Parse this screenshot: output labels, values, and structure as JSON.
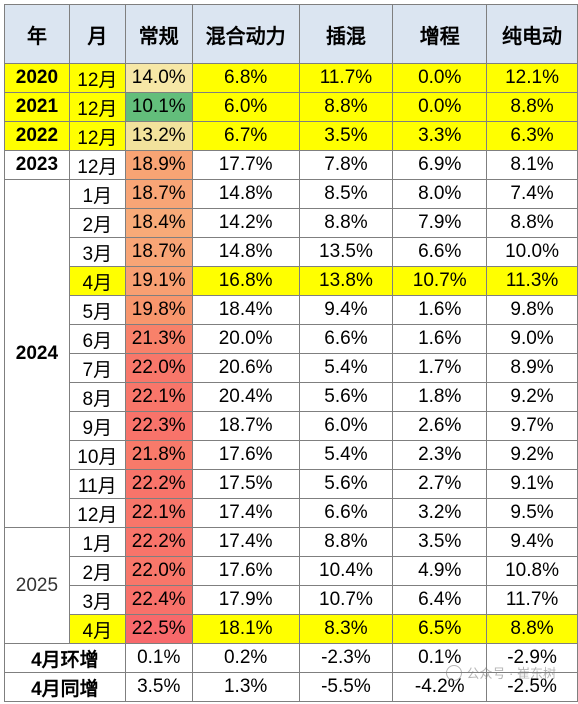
{
  "columns": [
    "年",
    "月",
    "常规",
    "混合动力",
    "插混",
    "增程",
    "纯电动"
  ],
  "rows": [
    {
      "year": "2020",
      "month": "12月",
      "values": [
        "14.0%",
        "6.8%",
        "11.7%",
        "0.0%",
        "12.1%"
      ],
      "highlight": true,
      "c": "#f6e7a6"
    },
    {
      "year": "2021",
      "month": "12月",
      "values": [
        "10.1%",
        "6.0%",
        "8.8%",
        "0.0%",
        "8.8%"
      ],
      "highlight": true,
      "c": "#63be7b"
    },
    {
      "year": "2022",
      "month": "12月",
      "values": [
        "13.2%",
        "6.7%",
        "3.5%",
        "3.3%",
        "6.3%"
      ],
      "highlight": true,
      "c": "#f2e29c"
    },
    {
      "year": "2023",
      "month": "12月",
      "values": [
        "18.9%",
        "17.7%",
        "7.8%",
        "6.9%",
        "8.1%"
      ],
      "highlight": false,
      "c": "#f8a474"
    },
    {
      "year": "",
      "month": "1月",
      "values": [
        "18.7%",
        "14.8%",
        "8.5%",
        "8.0%",
        "7.4%"
      ],
      "highlight": false,
      "c": "#f8a576"
    },
    {
      "year": "",
      "month": "2月",
      "values": [
        "18.4%",
        "14.2%",
        "8.8%",
        "7.9%",
        "8.8%"
      ],
      "highlight": false,
      "c": "#f8aa78"
    },
    {
      "year": "",
      "month": "3月",
      "values": [
        "18.7%",
        "14.8%",
        "13.5%",
        "6.6%",
        "10.0%"
      ],
      "highlight": false,
      "c": "#f8a576"
    },
    {
      "year": "",
      "month": "4月",
      "values": [
        "19.1%",
        "16.8%",
        "13.8%",
        "10.7%",
        "11.3%"
      ],
      "highlight": true,
      "c": "#f89f72"
    },
    {
      "year": "",
      "month": "5月",
      "values": [
        "19.8%",
        "18.4%",
        "9.4%",
        "1.6%",
        "9.8%"
      ],
      "highlight": false,
      "c": "#f8966d"
    },
    {
      "year": "2024",
      "month": "6月",
      "values": [
        "21.3%",
        "20.0%",
        "6.6%",
        "1.6%",
        "9.0%"
      ],
      "highlight": false,
      "c": "#f8816a"
    },
    {
      "year": "",
      "month": "7月",
      "values": [
        "22.0%",
        "20.6%",
        "5.4%",
        "1.7%",
        "8.9%"
      ],
      "highlight": false,
      "c": "#f8776a"
    },
    {
      "year": "",
      "month": "8月",
      "values": [
        "22.1%",
        "20.4%",
        "5.6%",
        "1.8%",
        "9.2%"
      ],
      "highlight": false,
      "c": "#f8766a"
    },
    {
      "year": "",
      "month": "9月",
      "values": [
        "22.3%",
        "18.7%",
        "6.0%",
        "2.6%",
        "9.7%"
      ],
      "highlight": false,
      "c": "#f8736a"
    },
    {
      "year": "",
      "month": "10月",
      "values": [
        "21.8%",
        "17.6%",
        "5.4%",
        "2.3%",
        "9.2%"
      ],
      "highlight": false,
      "c": "#f87a6a"
    },
    {
      "year": "",
      "month": "11月",
      "values": [
        "22.2%",
        "17.5%",
        "5.6%",
        "2.7%",
        "9.1%"
      ],
      "highlight": false,
      "c": "#f8746a"
    },
    {
      "year": "",
      "month": "12月",
      "values": [
        "22.1%",
        "17.4%",
        "6.6%",
        "3.2%",
        "9.5%"
      ],
      "highlight": false,
      "c": "#f8766a"
    },
    {
      "year": "",
      "month": "1月",
      "values": [
        "22.2%",
        "17.4%",
        "8.8%",
        "3.5%",
        "9.4%"
      ],
      "highlight": false,
      "c": "#f8746a"
    },
    {
      "year": "2025",
      "month": "2月",
      "values": [
        "22.0%",
        "17.6%",
        "10.4%",
        "4.9%",
        "10.8%"
      ],
      "highlight": false,
      "c": "#f8776a"
    },
    {
      "year": "",
      "month": "3月",
      "values": [
        "22.4%",
        "17.9%",
        "10.7%",
        "6.4%",
        "11.7%"
      ],
      "highlight": false,
      "c": "#f8716a"
    },
    {
      "year": "",
      "month": "4月",
      "values": [
        "22.5%",
        "18.1%",
        "8.3%",
        "6.5%",
        "8.8%"
      ],
      "highlight": true,
      "c": "#f8696b"
    }
  ],
  "summary": [
    {
      "label": "4月环增",
      "values": [
        "0.1%",
        "0.2%",
        "-2.3%",
        "0.1%",
        "-2.9%"
      ]
    },
    {
      "label": "4月同增",
      "values": [
        "3.5%",
        "1.3%",
        "-5.5%",
        "-4.2%",
        "-2.5%"
      ]
    }
  ],
  "watermark": "公众号 · 崔东树"
}
